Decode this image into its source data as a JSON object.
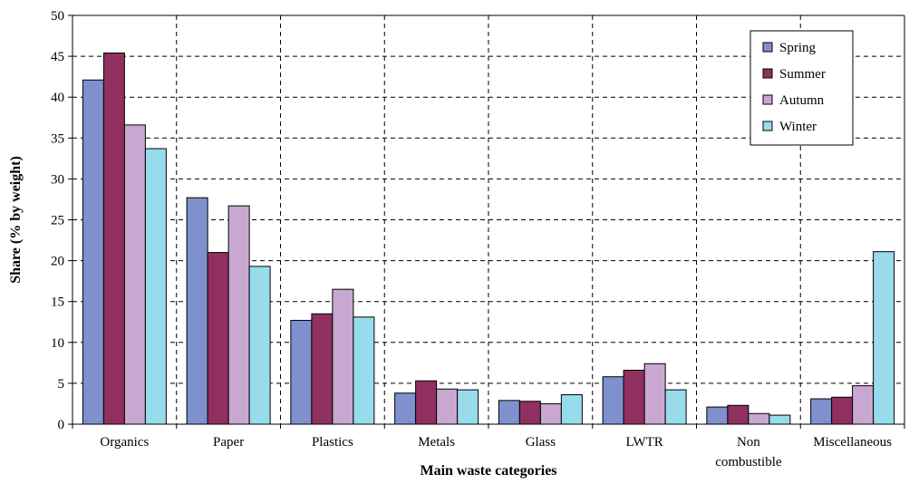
{
  "chart_data": {
    "type": "bar",
    "title": "",
    "xlabel": "Main waste categories",
    "ylabel": "Share (% by weight)",
    "ylim": [
      0,
      50
    ],
    "yticks": [
      0,
      5,
      10,
      15,
      20,
      25,
      30,
      35,
      40,
      45,
      50
    ],
    "grid": true,
    "legend_position": "top-right",
    "categories": [
      "Organics",
      "Paper",
      "Plastics",
      "Metals",
      "Glass",
      "LWTR",
      "Non combustible",
      "Miscellaneous"
    ],
    "category_lines": [
      [
        "Organics"
      ],
      [
        "Paper"
      ],
      [
        "Plastics"
      ],
      [
        "Metals"
      ],
      [
        "Glass"
      ],
      [
        "LWTR"
      ],
      [
        "Non",
        "combustible"
      ],
      [
        "Miscellaneous"
      ]
    ],
    "series": [
      {
        "name": "Spring",
        "color": "#8090CC",
        "values": [
          42.1,
          27.7,
          12.7,
          3.8,
          2.9,
          5.8,
          2.1,
          3.1
        ]
      },
      {
        "name": "Summer",
        "color": "#903060",
        "values": [
          45.4,
          21.0,
          13.5,
          5.3,
          2.8,
          6.6,
          2.3,
          3.3
        ]
      },
      {
        "name": "Autumn",
        "color": "#C8A8D0",
        "values": [
          36.6,
          26.7,
          16.5,
          4.3,
          2.5,
          7.4,
          1.3,
          4.7
        ]
      },
      {
        "name": "Winter",
        "color": "#98DCEC",
        "values": [
          33.7,
          19.3,
          13.1,
          4.2,
          3.6,
          4.2,
          1.1,
          21.1
        ]
      }
    ]
  }
}
